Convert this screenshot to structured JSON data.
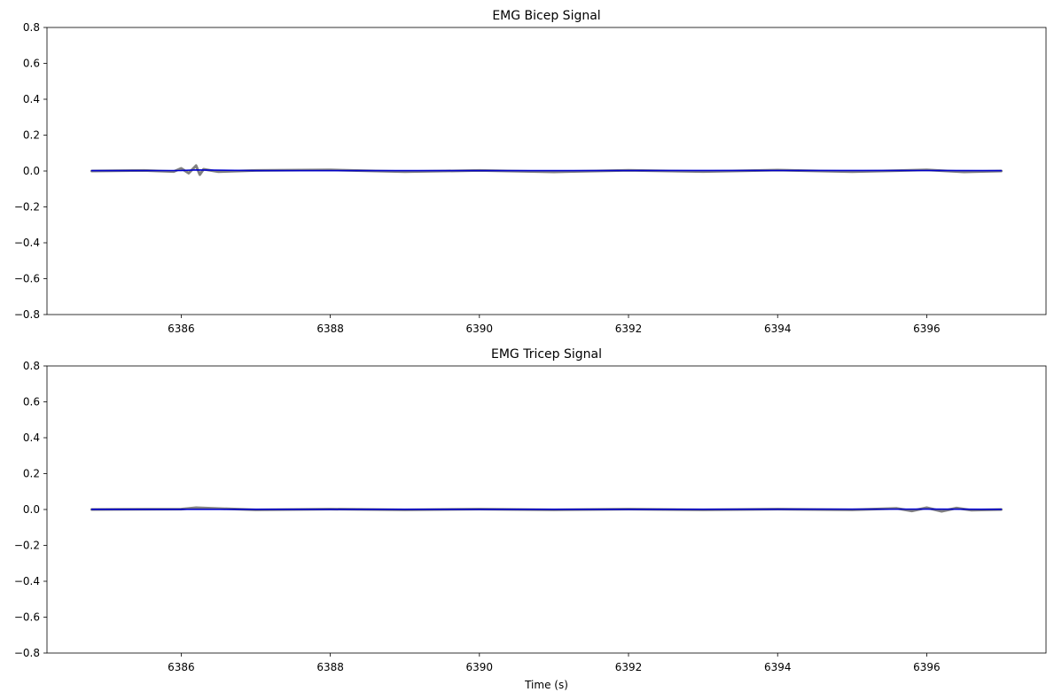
{
  "chart_data": [
    {
      "type": "line",
      "title": "EMG Bicep Signal",
      "xlabel": "",
      "ylabel": "",
      "xlim": [
        6384.2,
        6397.6
      ],
      "ylim": [
        -0.8,
        0.8
      ],
      "x_ticks": [
        6386,
        6388,
        6390,
        6392,
        6394,
        6396
      ],
      "x_tick_labels": [
        "6386",
        "6388",
        "6390",
        "6392",
        "6394",
        "6396"
      ],
      "y_ticks": [
        0.8,
        0.6,
        0.4,
        0.2,
        0.0,
        -0.2,
        -0.4,
        -0.6,
        -0.8
      ],
      "y_tick_labels": [
        "0.8",
        "0.6",
        "0.4",
        "0.2",
        "0.0",
        "−0.2",
        "−0.4",
        "−0.6",
        "−0.8"
      ],
      "grid": false,
      "series": [
        {
          "color": "#808080",
          "x": [
            6384.8,
            6385.5,
            6385.9,
            6386.0,
            6386.1,
            6386.2,
            6386.25,
            6386.3,
            6386.5,
            6387.0,
            6388.0,
            6389.0,
            6390.0,
            6391.0,
            6392.0,
            6393.0,
            6394.0,
            6395.0,
            6396.0,
            6396.5,
            6397.0
          ],
          "y": [
            0.0,
            0.003,
            -0.003,
            0.015,
            -0.012,
            0.03,
            -0.02,
            0.01,
            -0.004,
            0.003,
            0.006,
            -0.004,
            0.003,
            -0.005,
            0.004,
            -0.003,
            0.005,
            -0.004,
            0.006,
            -0.005,
            0.0
          ]
        },
        {
          "color": "#0000cc",
          "x": [
            6384.8,
            6386.0,
            6386.2,
            6387.0,
            6390.0,
            6393.0,
            6396.0,
            6397.0
          ],
          "y": [
            0.002,
            0.003,
            0.006,
            0.002,
            0.002,
            0.003,
            0.003,
            0.002
          ]
        }
      ]
    },
    {
      "type": "line",
      "title": "EMG Tricep Signal",
      "xlabel": "Time (s)",
      "ylabel": "",
      "xlim": [
        6384.2,
        6397.6
      ],
      "ylim": [
        -0.8,
        0.8
      ],
      "x_ticks": [
        6386,
        6388,
        6390,
        6392,
        6394,
        6396
      ],
      "x_tick_labels": [
        "6386",
        "6388",
        "6390",
        "6392",
        "6394",
        "6396"
      ],
      "y_ticks": [
        0.8,
        0.6,
        0.4,
        0.2,
        0.0,
        -0.2,
        -0.4,
        -0.6,
        -0.8
      ],
      "y_tick_labels": [
        "0.8",
        "0.6",
        "0.4",
        "0.2",
        "0.0",
        "−0.2",
        "−0.4",
        "−0.6",
        "−0.8"
      ],
      "grid": false,
      "series": [
        {
          "color": "#808080",
          "x": [
            6384.8,
            6386.0,
            6386.2,
            6387.0,
            6388.0,
            6389.0,
            6390.0,
            6391.0,
            6392.0,
            6393.0,
            6394.0,
            6395.0,
            6395.6,
            6395.8,
            6396.0,
            6396.2,
            6396.4,
            6396.6,
            6397.0
          ],
          "y": [
            0.0,
            0.002,
            0.01,
            -0.002,
            0.002,
            -0.002,
            0.002,
            -0.002,
            0.002,
            -0.002,
            0.002,
            -0.002,
            0.006,
            -0.008,
            0.01,
            -0.01,
            0.008,
            -0.004,
            0.0
          ]
        },
        {
          "color": "#0000cc",
          "x": [
            6384.8,
            6388.0,
            6392.0,
            6396.0,
            6397.0
          ],
          "y": [
            0.001,
            0.001,
            0.001,
            0.002,
            0.001
          ]
        }
      ]
    }
  ]
}
